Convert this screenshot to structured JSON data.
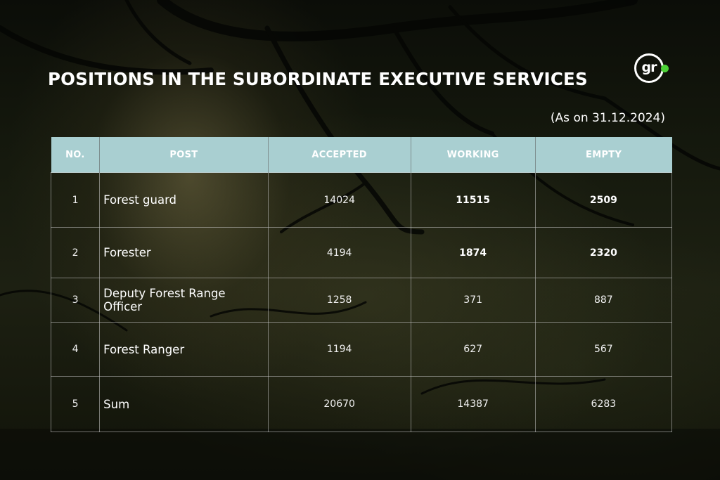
{
  "title": "POSITIONS IN THE SUBORDINATE EXECUTIVE SERVICES",
  "logo": {
    "text": "gr",
    "accent_color": "#4cd137"
  },
  "date_note": "(As on 31.12.2024)",
  "colors": {
    "header_bg": "#a9cfd1",
    "text": "#ffffff"
  },
  "table": {
    "headers": [
      "NO.",
      "POST",
      "ACCEPTED",
      "WORKING",
      "EMPTY"
    ],
    "rows": [
      {
        "no": "1",
        "post": "Forest guard",
        "accepted": "14024",
        "working": "11515",
        "empty": "2509"
      },
      {
        "no": "2",
        "post": "Forester",
        "accepted": "4194",
        "working": "1874",
        "empty": "2320"
      },
      {
        "no": "3",
        "post": "Deputy Forest Range Officer",
        "accepted": "1258",
        "working": "371",
        "empty": "887"
      },
      {
        "no": "4",
        "post": "Forest Ranger",
        "accepted": "1194",
        "working": "627",
        "empty": "567"
      },
      {
        "no": "5",
        "post": "Sum",
        "accepted": "20670",
        "working": "14387",
        "empty": "6283"
      }
    ]
  }
}
